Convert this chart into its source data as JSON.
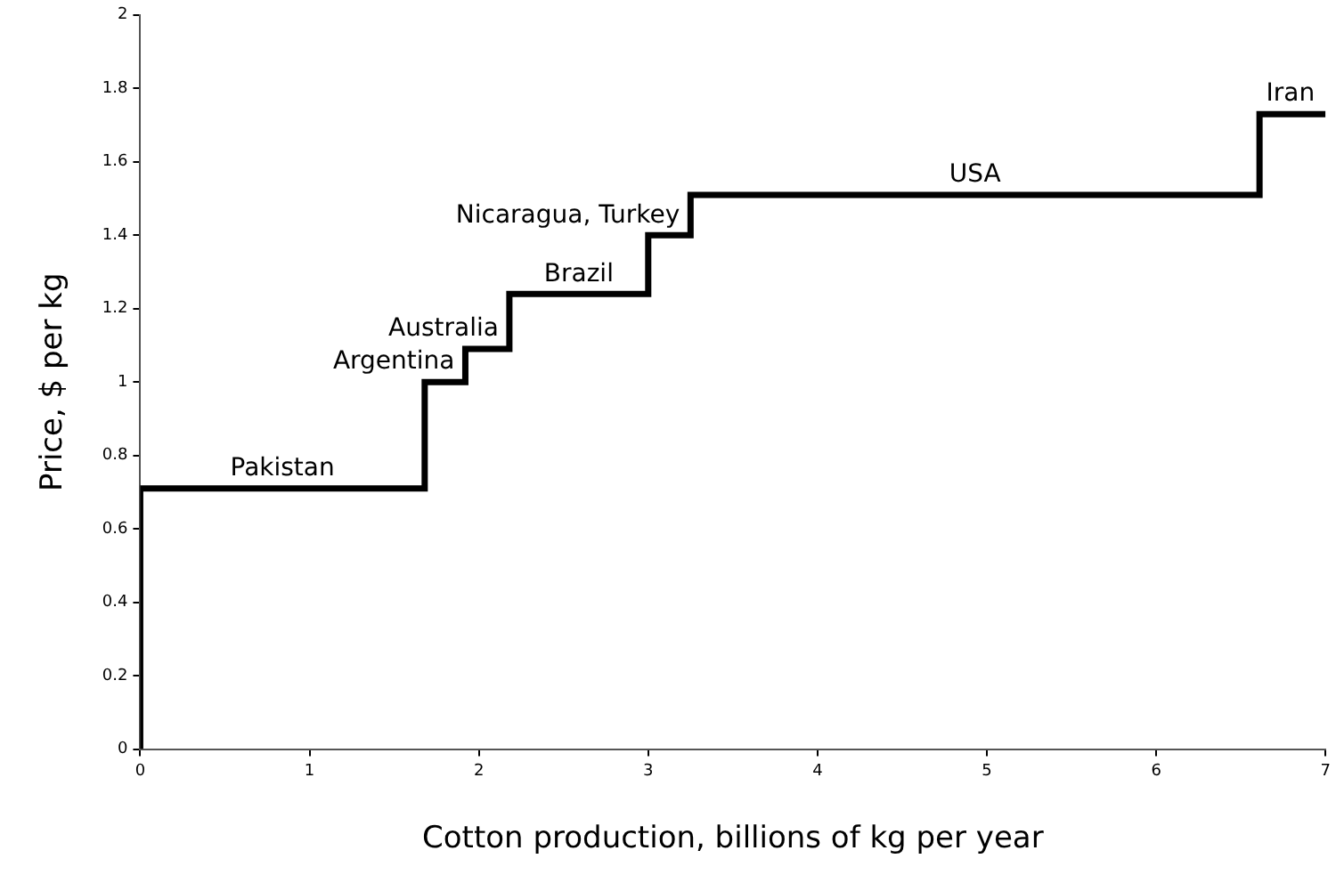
{
  "chart_data": {
    "type": "step",
    "xlabel": "Cotton production, billions of kg per year",
    "ylabel": "Price, $ per kg",
    "x": [
      0,
      0,
      1.68,
      1.92,
      2.18,
      3.0,
      3.25,
      6.61,
      7
    ],
    "values": [
      0,
      0.71,
      1.0,
      1.09,
      1.24,
      1.4,
      1.51,
      1.73,
      1.73
    ],
    "color": "#000000",
    "xlim": [
      0,
      7
    ],
    "xticks": [
      0,
      1,
      2,
      3,
      4,
      5,
      6,
      7
    ],
    "ylim": [
      0,
      2
    ],
    "yticks": [
      0,
      0.2,
      0.4,
      0.6,
      0.8,
      1,
      1.2,
      1.4,
      1.6,
      1.8,
      2
    ],
    "grid": false,
    "legend": false,
    "marker": "none",
    "line_style": "solid",
    "annotations": [
      {
        "text": "Pakistan",
        "x": 0.84,
        "y": 0.71
      },
      {
        "text": "Argentina",
        "x": 1.8,
        "y": 1.0
      },
      {
        "text": "Australia",
        "x": 2.05,
        "y": 1.09
      },
      {
        "text": "Brazil",
        "x": 2.59,
        "y": 1.24
      },
      {
        "text": "Nicaragua, Turkey",
        "x": 3.12,
        "y": 1.4
      },
      {
        "text": "USA",
        "x": 4.93,
        "y": 1.51
      },
      {
        "text": "Iran",
        "x": 6.8,
        "y": 1.73
      }
    ]
  }
}
